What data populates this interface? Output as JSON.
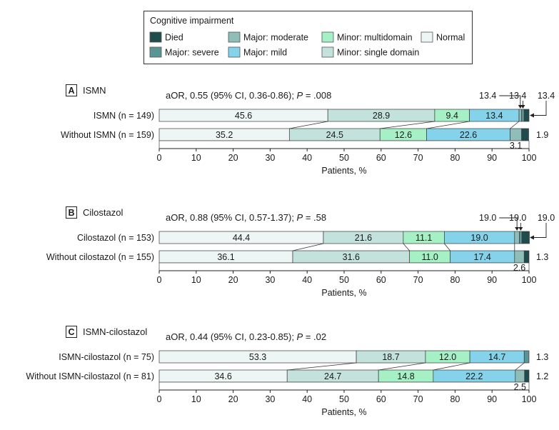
{
  "chart_data": {
    "type": "bar",
    "orientation": "horizontal-stacked-100",
    "xlabel": "Patients, %",
    "xlim": [
      0,
      100
    ],
    "xticks": [
      0,
      10,
      20,
      30,
      40,
      50,
      60,
      70,
      80,
      90,
      100
    ],
    "legend": {
      "title": "Cognitive impairment",
      "position": "top-center",
      "entries": [
        {
          "key": "died",
          "label": "Died",
          "color": "#1f4d4d"
        },
        {
          "key": "severe",
          "label": "Major: severe",
          "color": "#5b9494"
        },
        {
          "key": "moderate",
          "label": "Major: moderate",
          "color": "#8fbdb8"
        },
        {
          "key": "mild",
          "label": "Major: mild",
          "color": "#84d3ea"
        },
        {
          "key": "multidomain",
          "label": "Minor: multidomain",
          "color": "#a6f0c6"
        },
        {
          "key": "single",
          "label": "Minor: single domain",
          "color": "#c4e2dc"
        },
        {
          "key": "normal",
          "label": "Normal",
          "color": "#eef6f5"
        }
      ]
    },
    "segment_order": [
      "normal",
      "single",
      "multidomain",
      "mild",
      "moderate",
      "severe",
      "died"
    ],
    "panels": [
      {
        "letter": "A",
        "title": "ISMN",
        "aor_prefix": "aOR, 0.55 (95% CI, 0.36-0.86); ",
        "p_label": "P",
        "p_value": " = .008",
        "rows": [
          {
            "label": "ISMN  (n = 149)",
            "values": {
              "normal": 45.6,
              "single": 28.9,
              "multidomain": 9.4,
              "mild": 13.4,
              "moderate": 0.7,
              "severe": 0.7,
              "died": 1.3
            },
            "inline_labels": {
              "normal": "45.6",
              "single": "28.9",
              "multidomain": "9.4",
              "mild": "13.4"
            },
            "callouts": [
              "13.4",
              "13.4",
              "13.4"
            ]
          },
          {
            "label": "Without ISMN (n = 159)",
            "values": {
              "normal": 35.2,
              "single": 24.5,
              "multidomain": 12.6,
              "mild": 22.6,
              "moderate": 3.1,
              "severe": 0.0,
              "died": 1.9
            },
            "inline_labels": {
              "normal": "35.2",
              "single": "24.5",
              "multidomain": "12.6",
              "mild": "22.6"
            },
            "below_label": "3.1",
            "right_label": "1.9"
          }
        ]
      },
      {
        "letter": "B",
        "title": "Cilostazol",
        "aor_prefix": "aOR, 0.88 (95% CI, 0.57-1.37); ",
        "p_label": "P",
        "p_value": " = .58",
        "rows": [
          {
            "label": "Cilostazol (n = 153)",
            "values": {
              "normal": 44.4,
              "single": 21.6,
              "multidomain": 11.1,
              "mild": 19.0,
              "moderate": 1.3,
              "severe": 0.7,
              "died": 2.0
            },
            "inline_labels": {
              "normal": "44.4",
              "single": "21.6",
              "multidomain": "11.1",
              "mild": "19.0"
            },
            "callouts": [
              "19.0",
              "19.0",
              "19.0"
            ]
          },
          {
            "label": "Without cilostazol (n = 155)",
            "values": {
              "normal": 36.1,
              "single": 31.6,
              "multidomain": 11.0,
              "mild": 17.4,
              "moderate": 2.6,
              "severe": 0.0,
              "died": 1.3
            },
            "inline_labels": {
              "normal": "36.1",
              "single": "31.6",
              "multidomain": "11.0",
              "mild": "17.4"
            },
            "below_label": "2.6",
            "right_label": "1.3"
          }
        ]
      },
      {
        "letter": "C",
        "title": "ISMN-cilostazol",
        "aor_prefix": "aOR, 0.44 (95% CI, 0.23-0.85); ",
        "p_label": "P",
        "p_value": " = .02",
        "rows": [
          {
            "label": "ISMN-cilostazol (n = 75)",
            "values": {
              "normal": 53.3,
              "single": 18.7,
              "multidomain": 12.0,
              "mild": 14.7,
              "moderate": 0.0,
              "severe": 1.3,
              "died": 0.0
            },
            "inline_labels": {
              "normal": "53.3",
              "single": "18.7",
              "multidomain": "12.0",
              "mild": "14.7"
            },
            "right_label": "1.3"
          },
          {
            "label": "Without ISMN-cilostazol (n = 81)",
            "values": {
              "normal": 34.6,
              "single": 24.7,
              "multidomain": 14.8,
              "mild": 22.2,
              "moderate": 2.5,
              "severe": 0.0,
              "died": 1.2
            },
            "inline_labels": {
              "normal": "34.6",
              "single": "24.7",
              "multidomain": "14.8",
              "mild": "22.2"
            },
            "below_label": "2.5",
            "right_label": "1.2"
          }
        ]
      }
    ]
  }
}
